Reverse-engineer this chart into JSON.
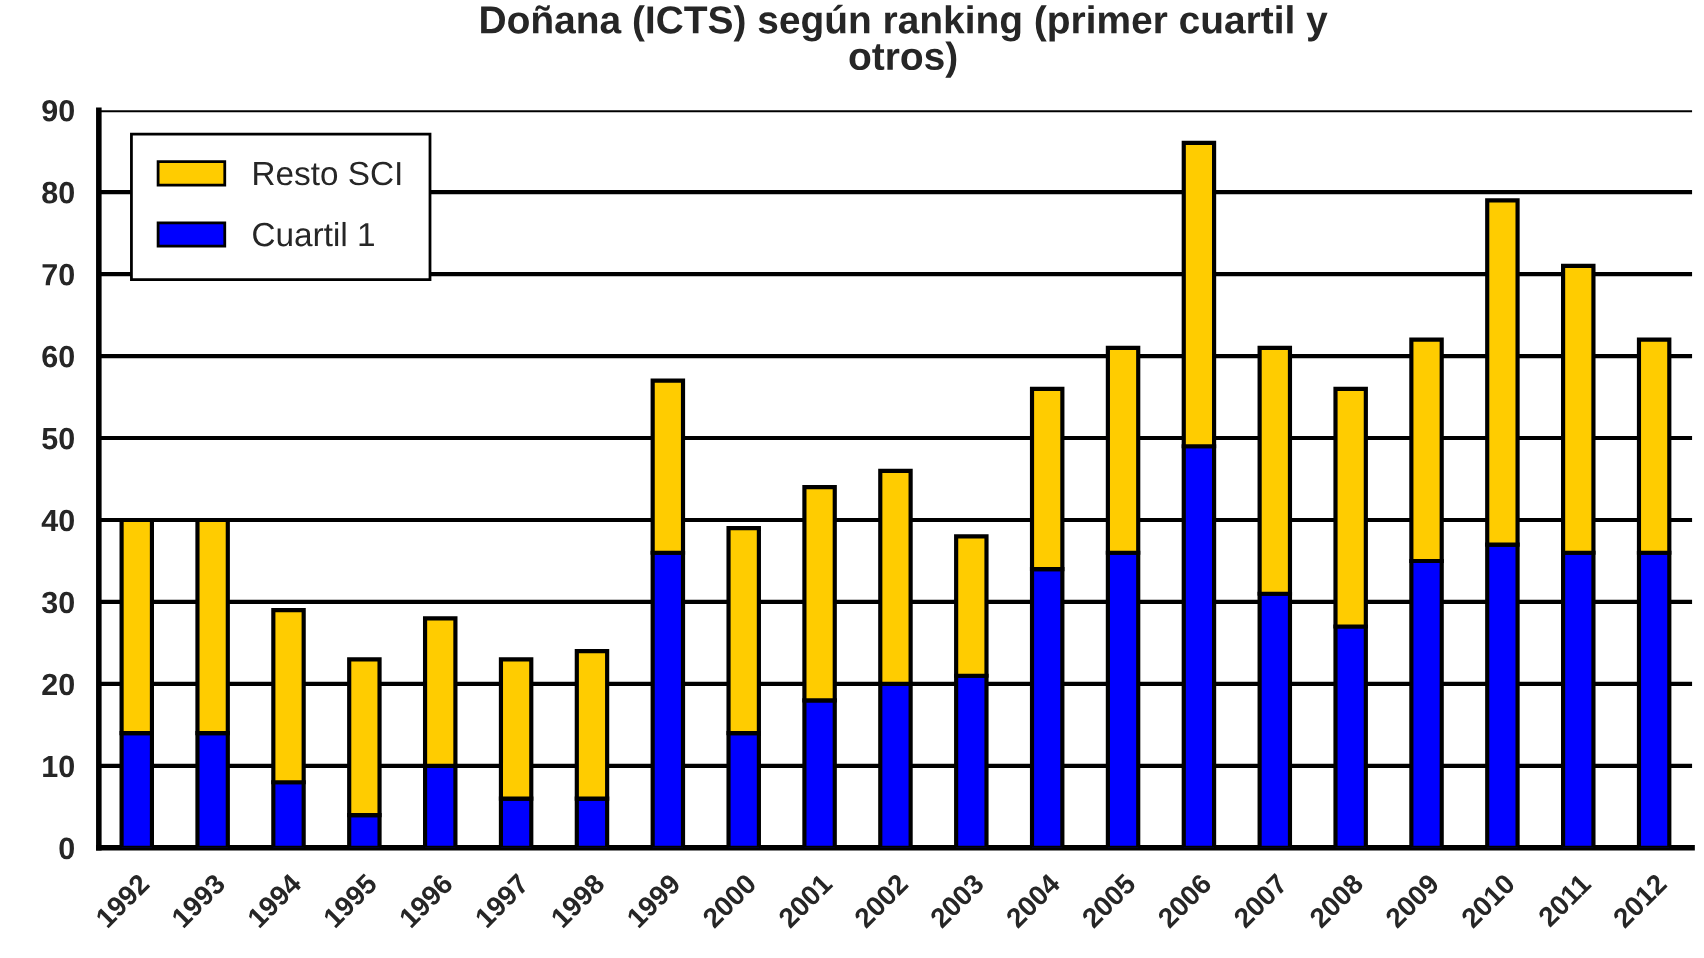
{
  "chart_data": {
    "type": "bar",
    "title": "Doñana (ICTS) según ranking (primer cuartil y\notros)",
    "categories": [
      "1992",
      "1993",
      "1994",
      "1995",
      "1996",
      "1997",
      "1998",
      "1999",
      "2000",
      "2001",
      "2002",
      "2003",
      "2004",
      "2005",
      "2006",
      "2007",
      "2008",
      "2009",
      "2010",
      "2011",
      "2012"
    ],
    "stacked": true,
    "series": [
      {
        "name": "Cuartil 1",
        "color": "#0000ff",
        "values": [
          14,
          14,
          8,
          4,
          10,
          6,
          6,
          36,
          14,
          18,
          20,
          21,
          34,
          36,
          49,
          31,
          27,
          35,
          37,
          36,
          36
        ]
      },
      {
        "name": "Resto SCI",
        "color": "#ffcc00",
        "values": [
          26,
          26,
          21,
          19,
          18,
          17,
          18,
          21,
          25,
          26,
          26,
          17,
          22,
          25,
          37,
          30,
          29,
          27,
          42,
          35,
          26
        ]
      }
    ],
    "ylim": [
      0,
      90
    ],
    "yticks": [
      0,
      10,
      20,
      30,
      40,
      50,
      60,
      70,
      80,
      90
    ],
    "grid": "y",
    "legend": "top left"
  }
}
